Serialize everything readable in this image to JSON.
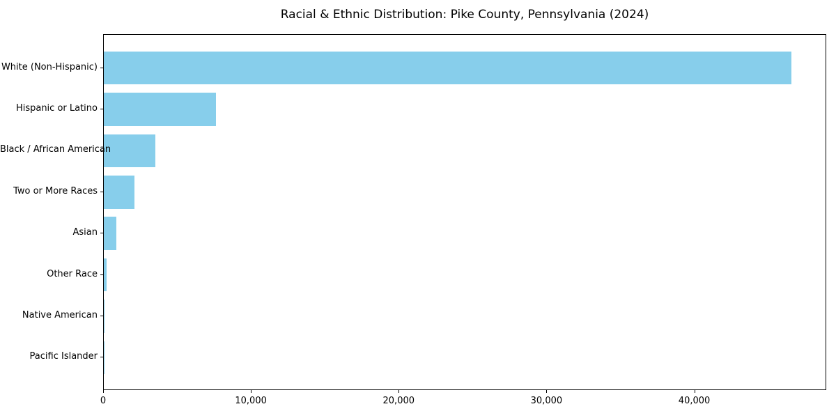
{
  "title": "Racial & Ethnic Distribution: Pike County, Pennsylvania (2024)",
  "chart_data": {
    "type": "bar",
    "orientation": "horizontal",
    "title": "Racial & Ethnic Distribution: Pike County, Pennsylvania (2024)",
    "categories": [
      "White (Non-Hispanic)",
      "Hispanic or Latino",
      "Black / African American",
      "Two or More Races",
      "Asian",
      "Other Race",
      "Native American",
      "Pacific Islander"
    ],
    "values": [
      46600,
      7600,
      3500,
      2100,
      850,
      200,
      30,
      10
    ],
    "xlabel": "",
    "ylabel": "",
    "xlim": [
      0,
      48930
    ],
    "x_ticks": [
      0,
      10000,
      20000,
      30000,
      40000
    ],
    "x_tick_labels": [
      "0",
      "10,000",
      "20,000",
      "30,000",
      "40,000"
    ],
    "bar_color": "#87CEEB",
    "border_color": "#000000",
    "background_color": "#ffffff",
    "grid": false,
    "legend": null
  }
}
